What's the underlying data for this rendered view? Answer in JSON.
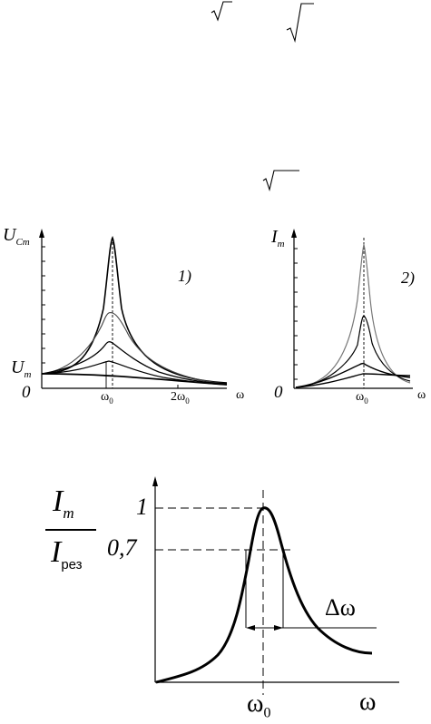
{
  "radicals": [
    "radical-1",
    "radical-2",
    "radical-3"
  ],
  "figure_top": {
    "left_plot": {
      "y_axis_label_main": "U",
      "y_axis_label_sub": "Cm",
      "y_axis_um_main": "U",
      "y_axis_um_sub": "m",
      "origin": "0",
      "x_tick_1": "ω",
      "x_tick_1_sub": "0",
      "x_tick_2": "2ω",
      "x_tick_2_sub": "0",
      "x_axis_label": "ω",
      "panel_label": "1)"
    },
    "right_plot": {
      "y_axis_label_main": "I",
      "y_axis_label_sub": "m",
      "origin": "0",
      "x_tick_1": "ω",
      "x_tick_1_sub": "0",
      "x_axis_label": "ω",
      "panel_label": "2)"
    }
  },
  "figure_bottom": {
    "ylabel_num_main": "I",
    "ylabel_num_sub": "m",
    "ylabel_den_main": "I",
    "ylabel_den_sub": "рез",
    "tick_1": "1",
    "tick_07": "0,7",
    "delta_label": "Δω",
    "x_tick_main": "ω",
    "x_tick_sub": "0",
    "x_axis_label": "ω"
  }
}
